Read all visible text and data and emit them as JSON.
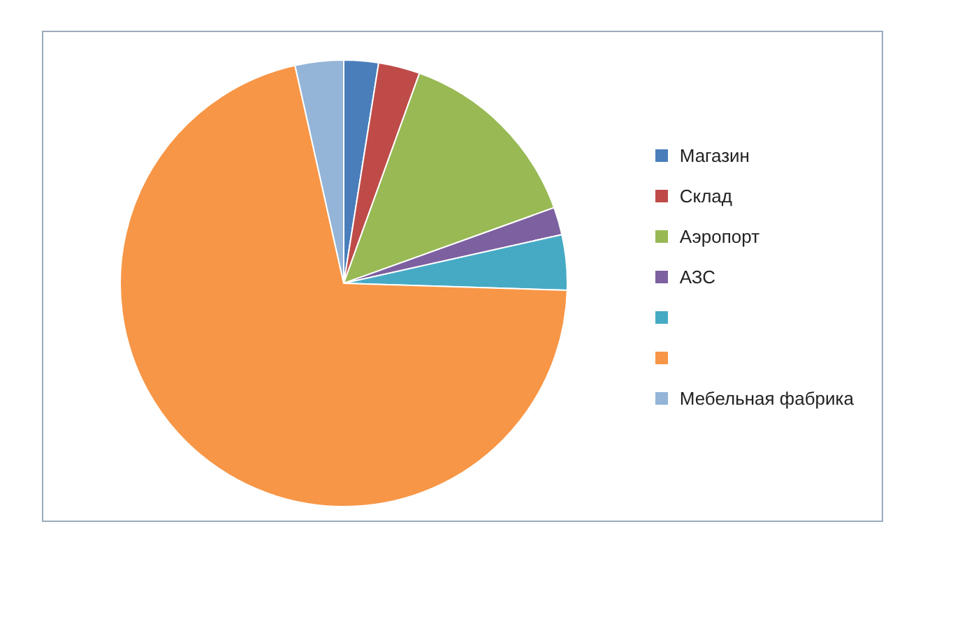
{
  "chart_data": {
    "type": "pie",
    "categories": [
      "Магазин",
      "Склад",
      "Аэропорт",
      "АЗС",
      null,
      null,
      "Мебельная фабрика"
    ],
    "values": [
      2.5,
      3,
      14,
      2,
      4,
      71,
      3.5
    ],
    "colors": [
      "#4a7ebb",
      "#be4b48",
      "#98b954",
      "#7d60a0",
      "#46aac5",
      "#f79646",
      "#94b4d8"
    ],
    "legend": "right"
  }
}
